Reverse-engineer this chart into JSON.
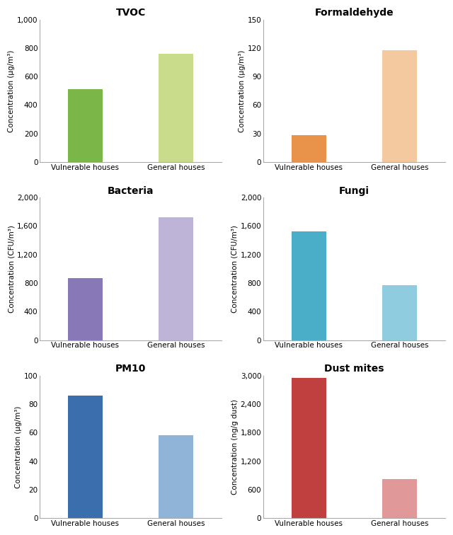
{
  "subplots": [
    {
      "title": "TVOC",
      "ylabel": "Concentration (μg/m³)",
      "categories": [
        "Vulnerable houses",
        "General houses"
      ],
      "values": [
        510,
        760
      ],
      "colors": [
        "#7ab648",
        "#c8dc8c"
      ],
      "ylim": [
        0,
        1000
      ],
      "yticks": [
        0,
        200,
        400,
        600,
        800,
        1000
      ],
      "ytick_labels": [
        "0",
        "200",
        "400",
        "600",
        "800",
        "1,000"
      ]
    },
    {
      "title": "Formaldehyde",
      "ylabel": "Concentration (μg/m³)",
      "categories": [
        "Vulnerable houses",
        "General houses"
      ],
      "values": [
        28,
        118
      ],
      "colors": [
        "#e8924a",
        "#f5c9a0"
      ],
      "ylim": [
        0,
        150
      ],
      "yticks": [
        0,
        30,
        60,
        90,
        120,
        150
      ],
      "ytick_labels": [
        "0",
        "30",
        "60",
        "90",
        "120",
        "150"
      ]
    },
    {
      "title": "Bacteria",
      "ylabel": "Concentration (CFU/m³)",
      "categories": [
        "Vulnerable houses",
        "General houses"
      ],
      "values": [
        870,
        1720
      ],
      "colors": [
        "#8878b8",
        "#beb4d8"
      ],
      "ylim": [
        0,
        2000
      ],
      "yticks": [
        0,
        400,
        800,
        1200,
        1600,
        2000
      ],
      "ytick_labels": [
        "0",
        "400",
        "800",
        "1,200",
        "1,600",
        "2,000"
      ]
    },
    {
      "title": "Fungi",
      "ylabel": "Concentration (CFU/m³)",
      "categories": [
        "Vulnerable houses",
        "General houses"
      ],
      "values": [
        1530,
        770
      ],
      "colors": [
        "#4aaec8",
        "#90cce0"
      ],
      "ylim": [
        0,
        2000
      ],
      "yticks": [
        0,
        400,
        800,
        1200,
        1600,
        2000
      ],
      "ytick_labels": [
        "0",
        "400",
        "800",
        "1,200",
        "1,600",
        "2,000"
      ]
    },
    {
      "title": "PM10",
      "ylabel": "Concentration (μg/m³)",
      "categories": [
        "Vulnerable houses",
        "General houses"
      ],
      "values": [
        86,
        58
      ],
      "colors": [
        "#3a6eac",
        "#90b4d8"
      ],
      "ylim": [
        0,
        100
      ],
      "yticks": [
        0,
        20,
        40,
        60,
        80,
        100
      ],
      "ytick_labels": [
        "0",
        "20",
        "40",
        "60",
        "80",
        "100"
      ]
    },
    {
      "title": "Dust mites",
      "ylabel": "Concentration (ng/g dust)",
      "categories": [
        "Vulnerable houses",
        "General houses"
      ],
      "values": [
        2950,
        820
      ],
      "colors": [
        "#c04040",
        "#e09898"
      ],
      "ylim": [
        0,
        3000
      ],
      "yticks": [
        0,
        600,
        1200,
        1800,
        2400,
        3000
      ],
      "ytick_labels": [
        "0",
        "600",
        "1,200",
        "1,800",
        "2,400",
        "3,000"
      ]
    }
  ],
  "title_fontsize": 10,
  "label_fontsize": 7.5,
  "tick_fontsize": 7.5,
  "bar_width": 0.38,
  "fig_facecolor": "#ffffff",
  "ax_facecolor": "#ffffff"
}
